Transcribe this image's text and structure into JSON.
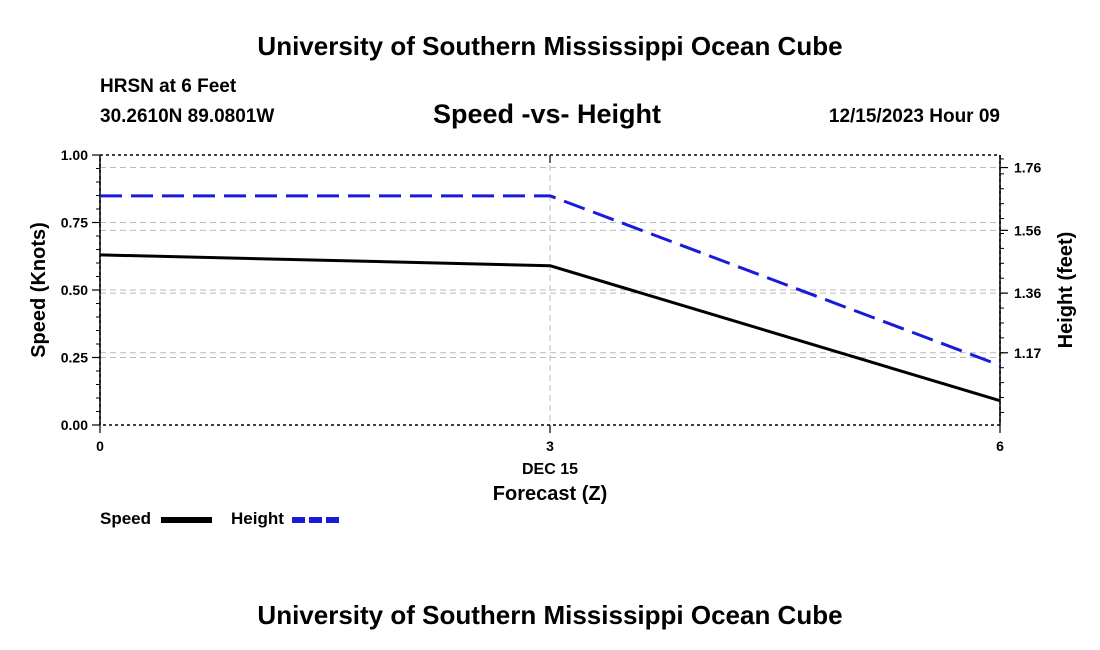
{
  "header": {
    "title": "University of Southern Mississippi Ocean Cube",
    "station": "HRSN at 6 Feet",
    "coords": "30.2610N  89.0801W",
    "subtitle": "Speed -vs- Height",
    "datetime": "12/15/2023 Hour 09"
  },
  "footer": {
    "title": "University of Southern Mississippi Ocean Cube"
  },
  "chart_data": {
    "type": "line",
    "title": "Speed -vs- Height",
    "x": [
      0,
      3,
      6
    ],
    "x_tick_labels": [
      "0",
      "3",
      "6"
    ],
    "x_date_label": "DEC 15",
    "xlabel": "Forecast (Z)",
    "xlim": [
      0,
      6
    ],
    "ylabel": "Speed (Knots)",
    "ylim": [
      0,
      1.0
    ],
    "y_ticks": [
      "0.00",
      "0.25",
      "0.50",
      "0.75",
      "1.00"
    ],
    "y2label": "Height (feet)",
    "y2lim": [
      0.94,
      1.8
    ],
    "y2_ticks": [
      1.17,
      1.36,
      1.56,
      1.76
    ],
    "y2_tick_labels": [
      "1.17",
      "1.36",
      "1.56",
      "1.76"
    ],
    "grid": true,
    "series": [
      {
        "name": "Speed",
        "axis": "left",
        "color": "#000000",
        "dash": "solid",
        "values": [
          0.63,
          0.59,
          0.09
        ]
      },
      {
        "name": "Height",
        "axis": "right",
        "color": "#1a1adb",
        "dash": "dashed",
        "values": [
          1.67,
          1.67,
          1.13
        ]
      }
    ],
    "legend": {
      "position": "bottom-left",
      "items": [
        "Speed",
        "Height"
      ]
    }
  }
}
